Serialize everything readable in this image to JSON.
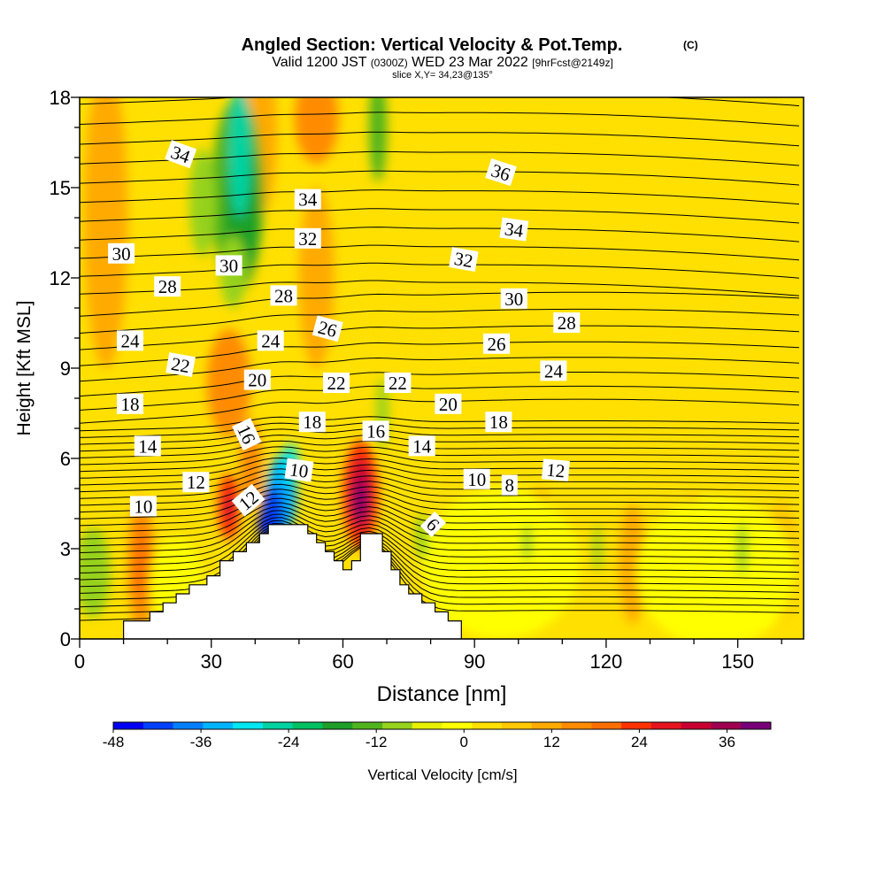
{
  "chart_data": {
    "type": "contour",
    "title": "Angled Section: Vertical Velocity & Pot.Temp.",
    "title_mark": "(C)",
    "subtitle": {
      "prefix": "Valid 1200 JST",
      "zulu": "(0300Z)",
      "date": "WED 23 Mar 2022",
      "fcst": "[9hrFcst@2149z]"
    },
    "slice_label": "slice X,Y= 34,23@135°",
    "xlabel": "Distance [nm]",
    "ylabel": "Height [Kft MSL]",
    "xlim": [
      0,
      165
    ],
    "ylim": [
      0,
      18
    ],
    "x_ticks": [
      0,
      30,
      60,
      90,
      120,
      150
    ],
    "y_ticks": [
      0,
      3,
      6,
      9,
      12,
      15,
      18
    ],
    "colorbar": {
      "label": "Vertical Velocity [cm/s]",
      "min": -48,
      "max": 42,
      "step": 3,
      "tick_values": [
        -48,
        -36,
        -24,
        -12,
        0,
        12,
        24,
        36
      ],
      "colors": [
        "#0000f5",
        "#0040ff",
        "#0080ff",
        "#00b4ff",
        "#00e6f0",
        "#00d2a0",
        "#00c060",
        "#1ea028",
        "#50b41e",
        "#96d21e",
        "#e6f000",
        "#ffff00",
        "#ffe000",
        "#ffc800",
        "#ffaa00",
        "#ff8c00",
        "#ff6e00",
        "#ff3200",
        "#e6141e",
        "#c80032",
        "#a00050",
        "#780078"
      ]
    },
    "terrain": {
      "x": [
        0,
        10,
        10,
        16,
        16,
        19,
        19,
        22,
        22,
        25,
        25,
        29,
        29,
        32,
        32,
        35,
        35,
        38,
        38,
        41,
        41,
        43,
        43,
        46,
        46,
        52,
        52,
        54,
        54,
        56,
        56,
        58,
        58,
        60,
        60,
        62,
        62,
        64,
        64,
        69,
        69,
        71,
        71,
        73,
        73,
        75,
        75,
        78,
        78,
        81,
        81,
        84,
        84,
        87,
        87,
        90
      ],
      "y": [
        0,
        0,
        0.6,
        0.6,
        0.9,
        0.9,
        1.2,
        1.2,
        1.5,
        1.5,
        1.8,
        1.8,
        2.1,
        2.1,
        2.6,
        2.6,
        2.9,
        2.9,
        3.2,
        3.2,
        3.5,
        3.5,
        3.8,
        3.8,
        3.8,
        3.8,
        3.5,
        3.5,
        3.2,
        3.2,
        2.9,
        2.9,
        2.6,
        2.6,
        2.3,
        2.3,
        2.6,
        2.6,
        3.5,
        3.5,
        2.9,
        2.9,
        2.3,
        2.3,
        1.8,
        1.8,
        1.5,
        1.5,
        1.2,
        1.2,
        0.9,
        0.9,
        0.6,
        0.6,
        0,
        0
      ]
    },
    "theta_levels": [
      6,
      8,
      10,
      12,
      14,
      16,
      18,
      20,
      22,
      24,
      26,
      28,
      30,
      32,
      34,
      36
    ],
    "contour_labels": [
      {
        "text": "34",
        "x": 23.0,
        "y": 16.1,
        "rot": 20
      },
      {
        "text": "36",
        "x": 96.0,
        "y": 15.5,
        "rot": 18
      },
      {
        "text": "34",
        "x": 52.0,
        "y": 14.6,
        "rot": 0
      },
      {
        "text": "34",
        "x": 99.0,
        "y": 13.6,
        "rot": 8
      },
      {
        "text": "32",
        "x": 52.0,
        "y": 13.3,
        "rot": 0
      },
      {
        "text": "30",
        "x": 9.5,
        "y": 12.8,
        "rot": 0
      },
      {
        "text": "32",
        "x": 87.5,
        "y": 12.6,
        "rot": 10
      },
      {
        "text": "30",
        "x": 34.0,
        "y": 12.4,
        "rot": 0
      },
      {
        "text": "28",
        "x": 20.0,
        "y": 11.7,
        "rot": 0
      },
      {
        "text": "28",
        "x": 46.5,
        "y": 11.4,
        "rot": 0
      },
      {
        "text": "30",
        "x": 99.0,
        "y": 11.3,
        "rot": 0
      },
      {
        "text": "28",
        "x": 111.0,
        "y": 10.5,
        "rot": 0
      },
      {
        "text": "26",
        "x": 56.5,
        "y": 10.3,
        "rot": 15
      },
      {
        "text": "24",
        "x": 11.5,
        "y": 9.9,
        "rot": 0
      },
      {
        "text": "24",
        "x": 43.5,
        "y": 9.9,
        "rot": 0
      },
      {
        "text": "26",
        "x": 95.0,
        "y": 9.8,
        "rot": 0
      },
      {
        "text": "22",
        "x": 23.0,
        "y": 9.1,
        "rot": 10
      },
      {
        "text": "24",
        "x": 108.0,
        "y": 8.9,
        "rot": 0
      },
      {
        "text": "20",
        "x": 40.5,
        "y": 8.6,
        "rot": 0
      },
      {
        "text": "22",
        "x": 58.5,
        "y": 8.5,
        "rot": 0
      },
      {
        "text": "22",
        "x": 72.5,
        "y": 8.5,
        "rot": 0
      },
      {
        "text": "18",
        "x": 11.5,
        "y": 7.8,
        "rot": 0
      },
      {
        "text": "20",
        "x": 84.0,
        "y": 7.8,
        "rot": 0
      },
      {
        "text": "18",
        "x": 53.0,
        "y": 7.2,
        "rot": 0
      },
      {
        "text": "18",
        "x": 95.5,
        "y": 7.2,
        "rot": 0
      },
      {
        "text": "16",
        "x": 38.0,
        "y": 6.8,
        "rot": 65
      },
      {
        "text": "16",
        "x": 67.5,
        "y": 6.9,
        "rot": 0
      },
      {
        "text": "14",
        "x": 15.5,
        "y": 6.4,
        "rot": 0
      },
      {
        "text": "14",
        "x": 78.0,
        "y": 6.4,
        "rot": 0
      },
      {
        "text": "10",
        "x": 50.0,
        "y": 5.6,
        "rot": 8
      },
      {
        "text": "12",
        "x": 108.5,
        "y": 5.6,
        "rot": 5
      },
      {
        "text": "12",
        "x": 26.5,
        "y": 5.2,
        "rot": 0
      },
      {
        "text": "10",
        "x": 90.5,
        "y": 5.3,
        "rot": 0
      },
      {
        "text": "8",
        "x": 98.0,
        "y": 5.1,
        "rot": 0
      },
      {
        "text": "12",
        "x": 38.5,
        "y": 4.6,
        "rot": -40
      },
      {
        "text": "10",
        "x": 14.5,
        "y": 4.4,
        "rot": 0
      },
      {
        "text": "6",
        "x": 80.5,
        "y": 3.8,
        "rot": 45
      }
    ]
  }
}
